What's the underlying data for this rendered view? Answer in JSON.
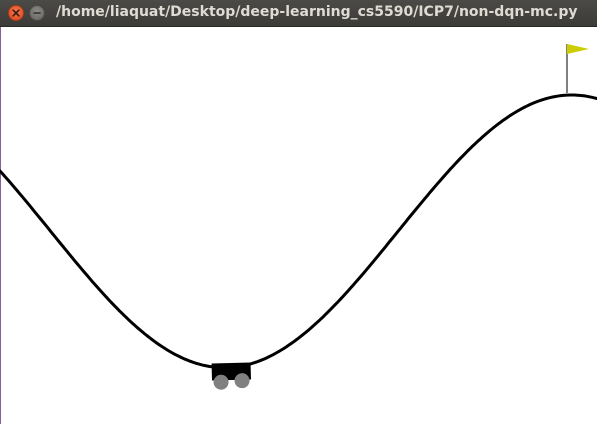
{
  "window": {
    "title": "/home/liaquat/Desktop/deep-learning_cs5590/ICP7/non-dqn-mc.py"
  },
  "titlebar_buttons": [
    {
      "name": "close",
      "icon": "close-icon",
      "color": "#e2542a"
    },
    {
      "name": "minimize",
      "icon": "minimize-icon",
      "color": "#6e6d69"
    }
  ],
  "scene": {
    "track_color": "#000000",
    "background_color": "#ffffff",
    "flag_color": "#cccc00",
    "car_body_color": "#000000",
    "car_wheel_color": "#808080"
  }
}
